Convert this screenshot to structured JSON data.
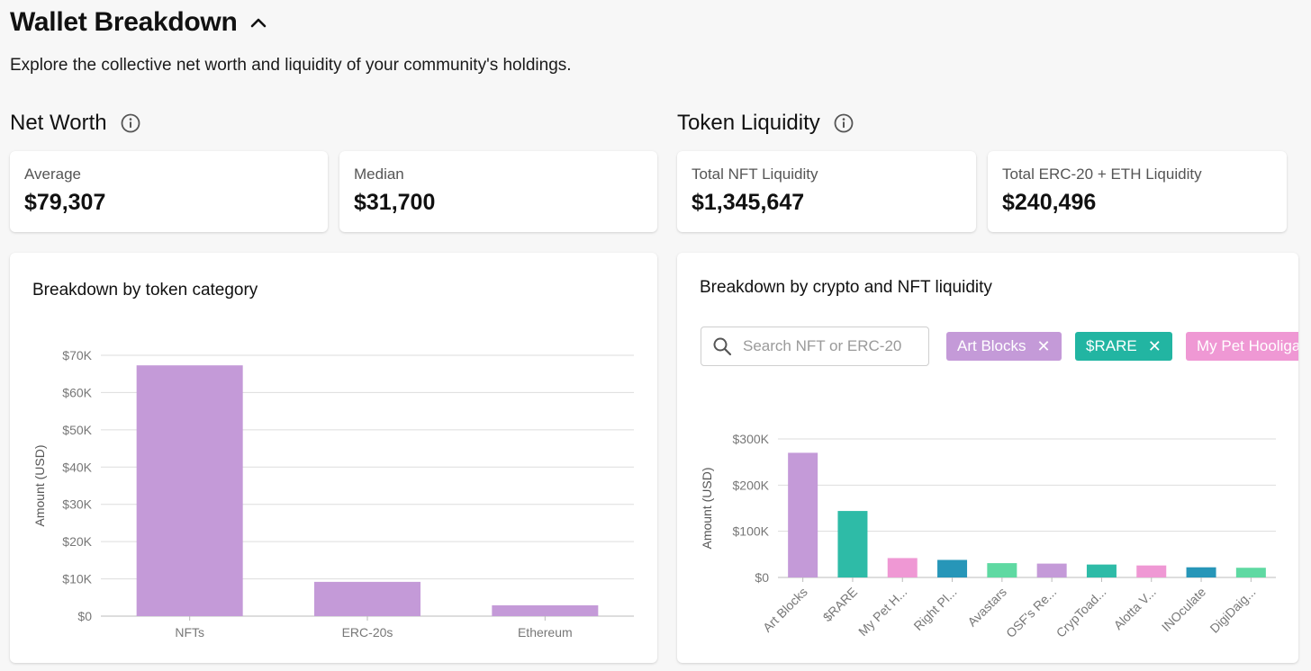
{
  "header": {
    "title": "Wallet Breakdown",
    "subtitle": "Explore the collective net worth and liquidity of your community's holdings."
  },
  "net_worth": {
    "title": "Net Worth",
    "average_label": "Average",
    "average_value": "$79,307",
    "median_label": "Median",
    "median_value": "$31,700"
  },
  "token_liquidity": {
    "title": "Token Liquidity",
    "nft_label": "Total NFT Liquidity",
    "nft_value": "$1,345,647",
    "erc_label": "Total ERC-20 + ETH Liquidity",
    "erc_value": "$240,496"
  },
  "left_chart": {
    "title": "Breakdown by token category"
  },
  "right_chart": {
    "title": "Breakdown by crypto and NFT liquidity",
    "search_placeholder": "Search NFT or ERC-20",
    "chips": [
      {
        "label": "Art Blocks",
        "color": "#c49ad8"
      },
      {
        "label": "$RARE",
        "color": "#22b5a2"
      },
      {
        "label": "My Pet Hooliga",
        "color": "#ef98d4"
      }
    ]
  },
  "colors": {
    "purple": "#c49ad8",
    "teal": "#2ebba7",
    "pink": "#ef98d4",
    "blue": "#2796b8",
    "green": "#5fd9a2",
    "grid": "#dddddd",
    "axis_text": "#777777"
  },
  "chart_data": [
    {
      "type": "bar",
      "title": "Breakdown by token category",
      "categories": [
        "NFTs",
        "ERC-20s",
        "Ethereum"
      ],
      "values": [
        67300,
        9200,
        2900
      ],
      "colors": [
        "#c49ad8",
        "#c49ad8",
        "#c49ad8"
      ],
      "ylabel": "Amount (USD)",
      "ylim": [
        0,
        70000
      ],
      "yticks": [
        0,
        10000,
        20000,
        30000,
        40000,
        50000,
        60000,
        70000
      ],
      "ytick_labels": [
        "$0",
        "$10K",
        "$20K",
        "$30K",
        "$40K",
        "$50K",
        "$60K",
        "$70K"
      ],
      "grid": true
    },
    {
      "type": "bar",
      "title": "Breakdown by crypto and NFT liquidity",
      "categories": [
        "Art Blocks",
        "$RARE",
        "My Pet H...",
        "Right Pl...",
        "Avastars",
        "OSF's Re...",
        "CrypToad...",
        "Alotta V...",
        "INOculate",
        "DigiDaig..."
      ],
      "values": [
        270000,
        144000,
        42000,
        38000,
        31000,
        30000,
        28000,
        26000,
        22000,
        21000
      ],
      "colors": [
        "#c49ad8",
        "#2ebba7",
        "#ef98d4",
        "#2796b8",
        "#5fd9a2",
        "#c49ad8",
        "#2ebba7",
        "#ef98d4",
        "#2796b8",
        "#5fd9a2"
      ],
      "ylabel": "Amount (USD)",
      "ylim": [
        0,
        300000
      ],
      "yticks": [
        0,
        100000,
        200000,
        300000
      ],
      "ytick_labels": [
        "$0",
        "$100K",
        "$200K",
        "$300K"
      ],
      "grid": true
    }
  ]
}
